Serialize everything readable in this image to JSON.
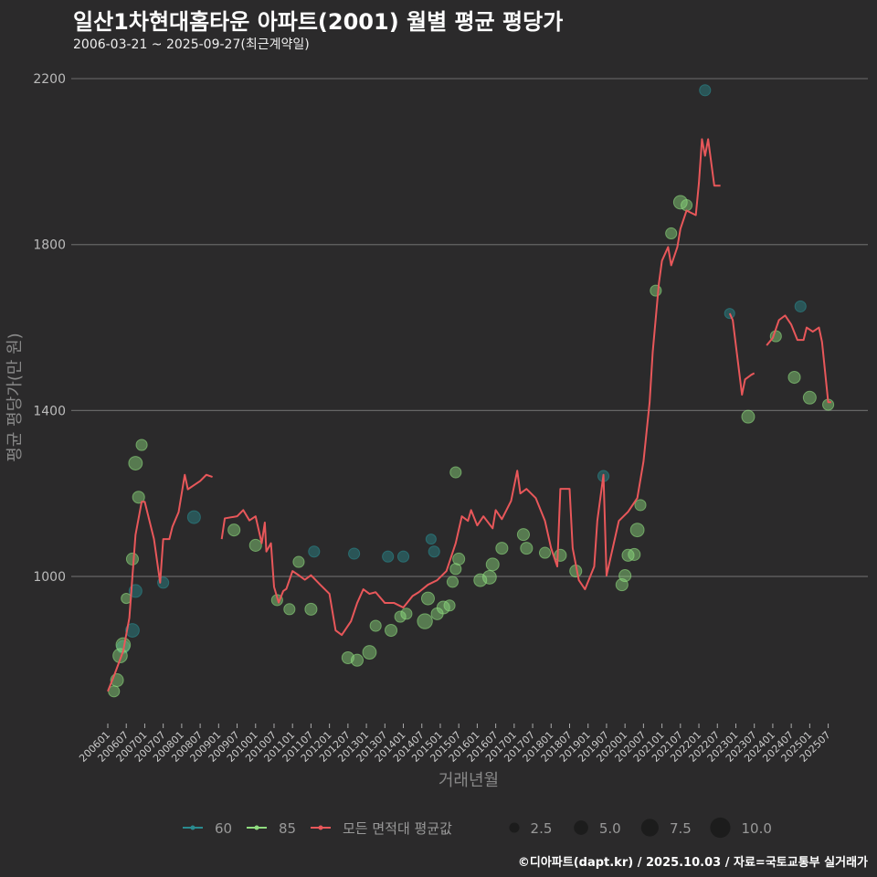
{
  "title": "일산1차현대홈타운 아파트(2001) 월별 평균 평당가",
  "subtitle": "2006-03-21 ~ 2025-09-27(최근계약일)",
  "caption": "©디아파트(dapt.kr) / 2025.10.03 / 자료=국토교통부 실거래가",
  "colors": {
    "s60": "#2a8a8f",
    "s85": "#8fdc7f",
    "avg": "#e8575a",
    "bg": "#2b2a2b",
    "grid": "#666666"
  },
  "chart_data": {
    "type": "line+scatter",
    "title": "일산1차현대홈타운 아파트(2001) 월별 평균 평당가",
    "xlabel": "거래년월",
    "ylabel": "평균 평당가(만 원)",
    "x_unit": "months since 2006-01",
    "xlim": [
      0,
      234
    ],
    "ylim": [
      640,
      2250
    ],
    "yticks": [
      1000,
      1400,
      1800,
      2200
    ],
    "xtick_labels": [
      "200601",
      "200607",
      "200701",
      "200707",
      "200801",
      "200807",
      "200901",
      "200907",
      "201001",
      "201007",
      "201101",
      "201107",
      "201201",
      "201207",
      "201301",
      "201307",
      "201401",
      "201407",
      "201501",
      "201507",
      "201601",
      "201607",
      "201701",
      "201707",
      "201801",
      "201807",
      "201901",
      "201907",
      "202001",
      "202007",
      "202101",
      "202107",
      "202201",
      "202207",
      "202301",
      "202307",
      "202401",
      "202407",
      "202501",
      "202507"
    ],
    "grid": true,
    "legend_position": "bottom",
    "legend": {
      "series": [
        {
          "key": "s60",
          "label": "60"
        },
        {
          "key": "s85",
          "label": "85"
        },
        {
          "key": "avg",
          "label": "모든 면적대 평균값"
        }
      ],
      "sizes": [
        "2.5",
        "5.0",
        "7.5",
        "10.0"
      ]
    },
    "avg_line_segments": [
      [
        [
          0,
          723
        ],
        [
          2,
          760
        ],
        [
          5,
          820
        ],
        [
          7,
          900
        ],
        [
          8,
          1000
        ],
        [
          9,
          1100
        ],
        [
          11,
          1180
        ],
        [
          12,
          1180
        ],
        [
          15,
          1090
        ],
        [
          17,
          985
        ],
        [
          18,
          1090
        ],
        [
          20,
          1090
        ],
        [
          21,
          1120
        ],
        [
          23,
          1155
        ],
        [
          25,
          1245
        ],
        [
          26,
          1210
        ],
        [
          28,
          1220
        ],
        [
          30,
          1230
        ],
        [
          32,
          1245
        ],
        [
          34,
          1240
        ]
      ],
      [
        [
          37,
          1090
        ],
        [
          38,
          1140
        ],
        [
          42,
          1145
        ],
        [
          44,
          1160
        ],
        [
          46,
          1135
        ],
        [
          48,
          1145
        ],
        [
          50,
          1080
        ],
        [
          51,
          1130
        ],
        [
          51.5,
          1060
        ],
        [
          53,
          1080
        ],
        [
          54,
          975
        ],
        [
          55.5,
          937
        ],
        [
          57,
          965
        ],
        [
          58,
          970
        ],
        [
          60,
          1013
        ],
        [
          62,
          1003
        ],
        [
          64,
          992
        ],
        [
          66,
          1003
        ],
        [
          69,
          980
        ],
        [
          72,
          958
        ],
        [
          74,
          870
        ],
        [
          76,
          859
        ],
        [
          79,
          892
        ],
        [
          81,
          936
        ],
        [
          83,
          969
        ],
        [
          85,
          958
        ],
        [
          87,
          962
        ],
        [
          90,
          936
        ],
        [
          93,
          936
        ],
        [
          96,
          925
        ],
        [
          99,
          953
        ],
        [
          101,
          962
        ],
        [
          104,
          980
        ],
        [
          107,
          991
        ],
        [
          110,
          1013
        ],
        [
          113,
          1080
        ],
        [
          115,
          1145
        ],
        [
          117,
          1134
        ],
        [
          118,
          1160
        ],
        [
          120,
          1123
        ],
        [
          122,
          1145
        ],
        [
          125,
          1116
        ],
        [
          126,
          1160
        ],
        [
          128,
          1138
        ],
        [
          131,
          1182
        ],
        [
          133,
          1255
        ],
        [
          134,
          1200
        ],
        [
          136,
          1211
        ],
        [
          139,
          1189
        ],
        [
          142,
          1134
        ],
        [
          144,
          1068
        ],
        [
          146,
          1024
        ],
        [
          147,
          1211
        ],
        [
          150,
          1211
        ],
        [
          151,
          1068
        ],
        [
          153,
          991
        ],
        [
          155,
          969
        ],
        [
          158,
          1024
        ],
        [
          159,
          1134
        ],
        [
          161,
          1245
        ],
        [
          162,
          1002
        ],
        [
          164,
          1068
        ],
        [
          166,
          1134
        ],
        [
          169,
          1156
        ],
        [
          172,
          1189
        ],
        [
          174,
          1277
        ],
        [
          176,
          1420
        ],
        [
          177,
          1541
        ],
        [
          179,
          1706
        ],
        [
          180,
          1761
        ],
        [
          182,
          1794
        ],
        [
          183,
          1750
        ],
        [
          185,
          1794
        ],
        [
          186,
          1838
        ],
        [
          188,
          1882
        ],
        [
          191,
          1871
        ],
        [
          192,
          1948
        ],
        [
          193,
          2054
        ],
        [
          194,
          2014
        ],
        [
          195,
          2054
        ],
        [
          197,
          1942
        ],
        [
          199,
          1942
        ]
      ],
      [
        [
          202,
          1634
        ],
        [
          203,
          1618
        ],
        [
          206,
          1438
        ],
        [
          207,
          1475
        ],
        [
          209,
          1486
        ],
        [
          210,
          1490
        ]
      ],
      [
        [
          214,
          1557
        ],
        [
          216,
          1575
        ],
        [
          218,
          1618
        ],
        [
          220,
          1629
        ],
        [
          222,
          1607
        ],
        [
          224,
          1570
        ],
        [
          226,
          1570
        ],
        [
          227,
          1600
        ],
        [
          229,
          1590
        ],
        [
          231,
          1600
        ],
        [
          232,
          1565
        ],
        [
          234,
          1420
        ],
        [
          235,
          1420
        ]
      ]
    ],
    "scatter": [
      [
        9,
        965,
        4,
        "s60"
      ],
      [
        8,
        870,
        4.5,
        "s60"
      ],
      [
        18,
        985,
        3,
        "s60"
      ],
      [
        28,
        1143,
        4,
        "s60"
      ],
      [
        194,
        2172,
        3,
        "s60"
      ],
      [
        202,
        1634,
        2.5,
        "s60"
      ],
      [
        225,
        1651,
        3,
        "s60"
      ],
      [
        91,
        1048,
        3,
        "s60"
      ],
      [
        96,
        1048,
        3,
        "s60"
      ],
      [
        80,
        1055,
        3,
        "s60"
      ],
      [
        106,
        1060,
        3,
        "s60"
      ],
      [
        105,
        1090,
        2.5,
        "s60"
      ],
      [
        161,
        1242,
        3,
        "s60"
      ],
      [
        67,
        1060,
        3,
        "s60"
      ],
      [
        5,
        830,
        4,
        "s60"
      ],
      [
        2,
        723,
        3,
        "s85"
      ],
      [
        3,
        750,
        4,
        "s85"
      ],
      [
        4,
        809,
        5,
        "s85"
      ],
      [
        5,
        835,
        5,
        "s85"
      ],
      [
        6,
        947,
        2.5,
        "s85"
      ],
      [
        8,
        1042,
        3.5,
        "s85"
      ],
      [
        9,
        1273,
        4.5,
        "s85"
      ],
      [
        10,
        1191,
        3.5,
        "s85"
      ],
      [
        11,
        1317,
        3,
        "s85"
      ],
      [
        41,
        1112,
        3.5,
        "s85"
      ],
      [
        48,
        1075,
        3.5,
        "s85"
      ],
      [
        55,
        943,
        3,
        "s85"
      ],
      [
        59,
        921,
        3,
        "s85"
      ],
      [
        62,
        1035,
        3,
        "s85"
      ],
      [
        66,
        921,
        3.5,
        "s85"
      ],
      [
        78,
        804,
        3.5,
        "s85"
      ],
      [
        81,
        798,
        3.5,
        "s85"
      ],
      [
        85,
        817,
        4.5,
        "s85"
      ],
      [
        87,
        881,
        3,
        "s85"
      ],
      [
        92,
        870,
        3.5,
        "s85"
      ],
      [
        95,
        903,
        3,
        "s85"
      ],
      [
        97,
        910,
        3,
        "s85"
      ],
      [
        103,
        892,
        5.5,
        "s85"
      ],
      [
        104,
        947,
        4,
        "s85"
      ],
      [
        107,
        910,
        3.5,
        "s85"
      ],
      [
        109,
        925,
        4,
        "s85"
      ],
      [
        111,
        930,
        3,
        "s85"
      ],
      [
        112,
        987,
        3,
        "s85"
      ],
      [
        113,
        1018,
        3,
        "s85"
      ],
      [
        114,
        1042,
        3.5,
        "s85"
      ],
      [
        113,
        1251,
        3,
        "s85"
      ],
      [
        121,
        991,
        4,
        "s85"
      ],
      [
        124,
        998,
        4.5,
        "s85"
      ],
      [
        125,
        1029,
        4,
        "s85"
      ],
      [
        128,
        1068,
        3.5,
        "s85"
      ],
      [
        135,
        1101,
        3.5,
        "s85"
      ],
      [
        136,
        1068,
        3.5,
        "s85"
      ],
      [
        142,
        1057,
        3,
        "s85"
      ],
      [
        147,
        1051,
        3.5,
        "s85"
      ],
      [
        152,
        1013,
        3.5,
        "s85"
      ],
      [
        167,
        980,
        3.5,
        "s85"
      ],
      [
        168,
        1002,
        3.5,
        "s85"
      ],
      [
        169,
        1051,
        3.5,
        "s85"
      ],
      [
        171,
        1053,
        3.5,
        "s85"
      ],
      [
        172,
        1112,
        4.5,
        "s85"
      ],
      [
        173,
        1172,
        3,
        "s85"
      ],
      [
        178,
        1689,
        3,
        "s85"
      ],
      [
        183,
        1827,
        3,
        "s85"
      ],
      [
        186,
        1902,
        4.5,
        "s85"
      ],
      [
        188,
        1895,
        3,
        "s85"
      ],
      [
        208,
        1385,
        4,
        "s85"
      ],
      [
        217,
        1579,
        3,
        "s85"
      ],
      [
        223,
        1480,
        3.5,
        "s85"
      ],
      [
        228,
        1431,
        4,
        "s85"
      ],
      [
        234,
        1414,
        3,
        "s85"
      ]
    ]
  }
}
